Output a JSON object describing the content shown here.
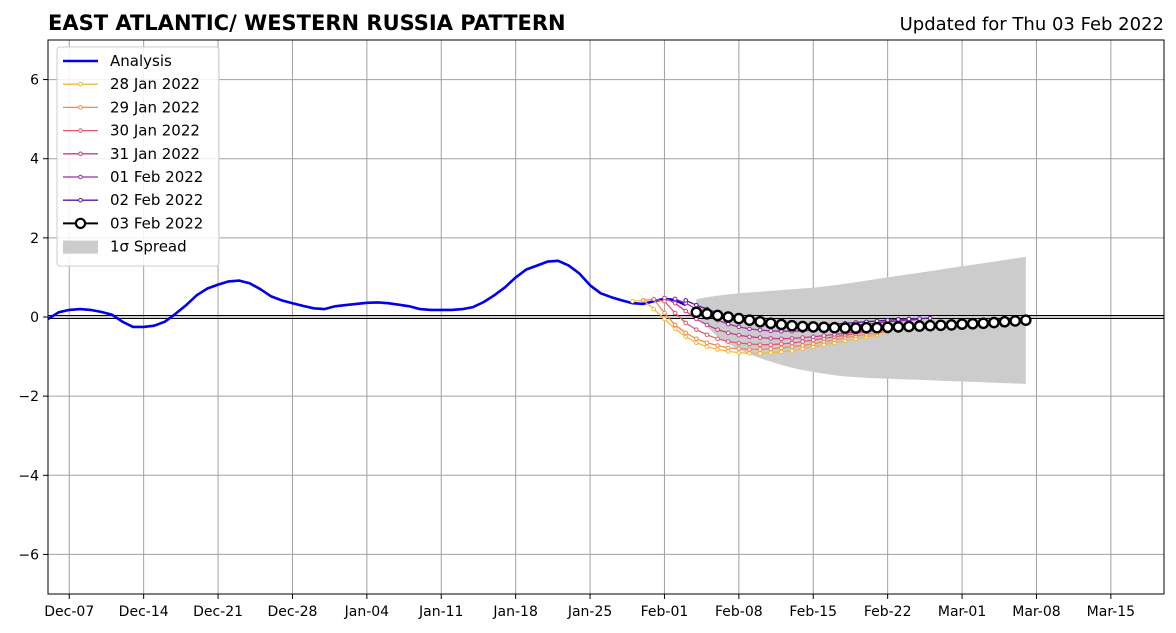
{
  "header": {
    "title": "EAST ATLANTIC/ WESTERN RUSSIA PATTERN",
    "updated": "Updated for Thu 03 Feb 2022"
  },
  "chart_data": {
    "type": "line",
    "x_axis": {
      "type": "date",
      "range": [
        "2021-12-05",
        "2022-03-20"
      ],
      "tick_labels": [
        {
          "label": "Dec-07",
          "date": "2021-12-07"
        },
        {
          "label": "Dec-14",
          "date": "2021-12-14"
        },
        {
          "label": "Dec-21",
          "date": "2021-12-21"
        },
        {
          "label": "Dec-28",
          "date": "2021-12-28"
        },
        {
          "label": "Jan-04",
          "date": "2022-01-04"
        },
        {
          "label": "Jan-11",
          "date": "2022-01-11"
        },
        {
          "label": "Jan-18",
          "date": "2022-01-18"
        },
        {
          "label": "Jan-25",
          "date": "2022-01-25"
        },
        {
          "label": "Feb-01",
          "date": "2022-02-01"
        },
        {
          "label": "Feb-08",
          "date": "2022-02-08"
        },
        {
          "label": "Feb-15",
          "date": "2022-02-15"
        },
        {
          "label": "Feb-22",
          "date": "2022-02-22"
        },
        {
          "label": "Mar-01",
          "date": "2022-03-01"
        },
        {
          "label": "Mar-08",
          "date": "2022-03-08"
        },
        {
          "label": "Mar-15",
          "date": "2022-03-15"
        }
      ]
    },
    "y_axis": {
      "range": [
        -7,
        7
      ],
      "ticks": [
        -6,
        -4,
        -2,
        0,
        2,
        4,
        6
      ],
      "tick_labels": [
        "−6",
        "−4",
        "−2",
        "0",
        "2",
        "4",
        "6"
      ]
    },
    "grid": true,
    "zero_line": true,
    "legend": {
      "position": "top-left",
      "entries": [
        "Analysis",
        "28 Jan 2022",
        "29 Jan 2022",
        "30 Jan 2022",
        "31 Jan 2022",
        "01 Feb 2022",
        "02 Feb 2022",
        "03 Feb 2022",
        "1σ Spread"
      ]
    },
    "analysis": {
      "name": "Analysis",
      "color": "#0000ee",
      "points": [
        [
          "2021-12-05",
          -0.05
        ],
        [
          "2021-12-06",
          0.12
        ],
        [
          "2021-12-07",
          0.18
        ],
        [
          "2021-12-08",
          0.2
        ],
        [
          "2021-12-09",
          0.18
        ],
        [
          "2021-12-10",
          0.13
        ],
        [
          "2021-12-11",
          0.06
        ],
        [
          "2021-12-12",
          -0.12
        ],
        [
          "2021-12-13",
          -0.25
        ],
        [
          "2021-12-14",
          -0.25
        ],
        [
          "2021-12-15",
          -0.22
        ],
        [
          "2021-12-16",
          -0.12
        ],
        [
          "2021-12-17",
          0.08
        ],
        [
          "2021-12-18",
          0.3
        ],
        [
          "2021-12-19",
          0.55
        ],
        [
          "2021-12-20",
          0.72
        ],
        [
          "2021-12-21",
          0.82
        ],
        [
          "2021-12-22",
          0.9
        ],
        [
          "2021-12-23",
          0.92
        ],
        [
          "2021-12-24",
          0.85
        ],
        [
          "2021-12-25",
          0.7
        ],
        [
          "2021-12-26",
          0.52
        ],
        [
          "2021-12-27",
          0.42
        ],
        [
          "2021-12-28",
          0.35
        ],
        [
          "2021-12-29",
          0.28
        ],
        [
          "2021-12-30",
          0.22
        ],
        [
          "2021-12-31",
          0.2
        ],
        [
          "2022-01-01",
          0.27
        ],
        [
          "2022-01-02",
          0.3
        ],
        [
          "2022-01-03",
          0.33
        ],
        [
          "2022-01-04",
          0.36
        ],
        [
          "2022-01-05",
          0.37
        ],
        [
          "2022-01-06",
          0.35
        ],
        [
          "2022-01-07",
          0.31
        ],
        [
          "2022-01-08",
          0.27
        ],
        [
          "2022-01-09",
          0.2
        ],
        [
          "2022-01-10",
          0.18
        ],
        [
          "2022-01-11",
          0.18
        ],
        [
          "2022-01-12",
          0.18
        ],
        [
          "2022-01-13",
          0.2
        ],
        [
          "2022-01-14",
          0.25
        ],
        [
          "2022-01-15",
          0.38
        ],
        [
          "2022-01-16",
          0.55
        ],
        [
          "2022-01-17",
          0.75
        ],
        [
          "2022-01-18",
          1.0
        ],
        [
          "2022-01-19",
          1.2
        ],
        [
          "2022-01-20",
          1.3
        ],
        [
          "2022-01-21",
          1.4
        ],
        [
          "2022-01-22",
          1.42
        ],
        [
          "2022-01-23",
          1.3
        ],
        [
          "2022-01-24",
          1.1
        ],
        [
          "2022-01-25",
          0.8
        ],
        [
          "2022-01-26",
          0.6
        ],
        [
          "2022-01-27",
          0.5
        ],
        [
          "2022-01-28",
          0.42
        ],
        [
          "2022-01-29",
          0.35
        ],
        [
          "2022-01-30",
          0.33
        ],
        [
          "2022-01-31",
          0.4
        ],
        [
          "2022-02-01",
          0.46
        ],
        [
          "2022-02-02",
          0.43
        ],
        [
          "2022-02-03",
          0.3
        ]
      ]
    },
    "forecast_series": [
      {
        "name": "28 Jan 2022",
        "color": "#f7b733",
        "start": "2022-01-29",
        "values": [
          0.4,
          0.42,
          0.2,
          -0.05,
          -0.3,
          -0.5,
          -0.65,
          -0.75,
          -0.82,
          -0.87,
          -0.9,
          -0.92,
          -0.92,
          -0.9,
          -0.88,
          -0.85,
          -0.8,
          -0.75,
          -0.7,
          -0.65,
          -0.6,
          -0.55,
          -0.5,
          -0.45
        ]
      },
      {
        "name": "29 Jan 2022",
        "color": "#f28a49",
        "start": "2022-01-30",
        "values": [
          0.42,
          0.45,
          0.1,
          -0.2,
          -0.4,
          -0.55,
          -0.65,
          -0.72,
          -0.78,
          -0.8,
          -0.82,
          -0.82,
          -0.8,
          -0.78,
          -0.75,
          -0.72,
          -0.68,
          -0.62,
          -0.58,
          -0.52,
          -0.48,
          -0.44,
          -0.4,
          -0.38
        ]
      },
      {
        "name": "30 Jan 2022",
        "color": "#e05a6b",
        "start": "2022-01-31",
        "values": [
          0.45,
          0.4,
          0.1,
          -0.15,
          -0.32,
          -0.45,
          -0.55,
          -0.62,
          -0.66,
          -0.68,
          -0.7,
          -0.7,
          -0.68,
          -0.66,
          -0.62,
          -0.58,
          -0.54,
          -0.5,
          -0.46,
          -0.42,
          -0.38,
          -0.35,
          -0.33,
          -0.3
        ]
      },
      {
        "name": "31 Jan 2022",
        "color": "#c43e8a",
        "start": "2022-02-01",
        "values": [
          0.48,
          0.35,
          0.15,
          -0.05,
          -0.2,
          -0.32,
          -0.4,
          -0.46,
          -0.5,
          -0.52,
          -0.54,
          -0.55,
          -0.54,
          -0.52,
          -0.5,
          -0.47,
          -0.44,
          -0.41,
          -0.38,
          -0.35,
          -0.33,
          -0.31,
          -0.3,
          -0.3
        ]
      },
      {
        "name": "01 Feb 2022",
        "color": "#9b2ca5",
        "start": "2022-02-02",
        "values": [
          0.46,
          0.35,
          0.2,
          0.05,
          -0.08,
          -0.18,
          -0.25,
          -0.3,
          -0.33,
          -0.35,
          -0.36,
          -0.36,
          -0.35,
          -0.33,
          -0.3,
          -0.27,
          -0.24,
          -0.21,
          -0.18,
          -0.15,
          -0.12,
          -0.1,
          -0.08,
          -0.06
        ]
      },
      {
        "name": "02 Feb 2022",
        "color": "#5a169b",
        "start": "2022-02-03",
        "values": [
          0.42,
          0.3,
          0.2,
          0.1,
          0.0,
          -0.07,
          -0.12,
          -0.16,
          -0.19,
          -0.21,
          -0.22,
          -0.22,
          -0.21,
          -0.2,
          -0.18,
          -0.16,
          -0.14,
          -0.12,
          -0.1,
          -0.08,
          -0.06,
          -0.05,
          -0.04,
          -0.03
        ]
      },
      {
        "name": "03 Feb 2022",
        "color": "#000000",
        "start": "2022-02-04",
        "values": [
          0.12,
          0.08,
          0.04,
          0.0,
          -0.04,
          -0.08,
          -0.12,
          -0.16,
          -0.19,
          -0.22,
          -0.24,
          -0.25,
          -0.26,
          -0.27,
          -0.28,
          -0.28,
          -0.27,
          -0.27,
          -0.26,
          -0.25,
          -0.24,
          -0.23,
          -0.22,
          -0.21,
          -0.2,
          -0.18,
          -0.17,
          -0.16,
          -0.14,
          -0.12,
          -0.1,
          -0.08
        ]
      }
    ],
    "spread": {
      "name": "1σ Spread",
      "color": "#cccccc",
      "start": "2022-02-04",
      "upper": [
        0.45,
        0.5,
        0.54,
        0.57,
        0.6,
        0.62,
        0.64,
        0.66,
        0.68,
        0.7,
        0.72,
        0.74,
        0.77,
        0.8,
        0.84,
        0.88,
        0.92,
        0.96,
        1.0,
        1.04,
        1.08,
        1.12,
        1.16,
        1.2,
        1.24,
        1.28,
        1.32,
        1.36,
        1.4,
        1.44,
        1.48,
        1.52
      ],
      "lower": [
        0.05,
        -0.25,
        -0.5,
        -0.68,
        -0.82,
        -0.94,
        -1.04,
        -1.13,
        -1.21,
        -1.28,
        -1.34,
        -1.39,
        -1.43,
        -1.47,
        -1.5,
        -1.52,
        -1.54,
        -1.55,
        -1.56,
        -1.57,
        -1.58,
        -1.59,
        -1.6,
        -1.61,
        -1.62,
        -1.63,
        -1.64,
        -1.65,
        -1.66,
        -1.67,
        -1.68,
        -1.69
      ]
    }
  }
}
